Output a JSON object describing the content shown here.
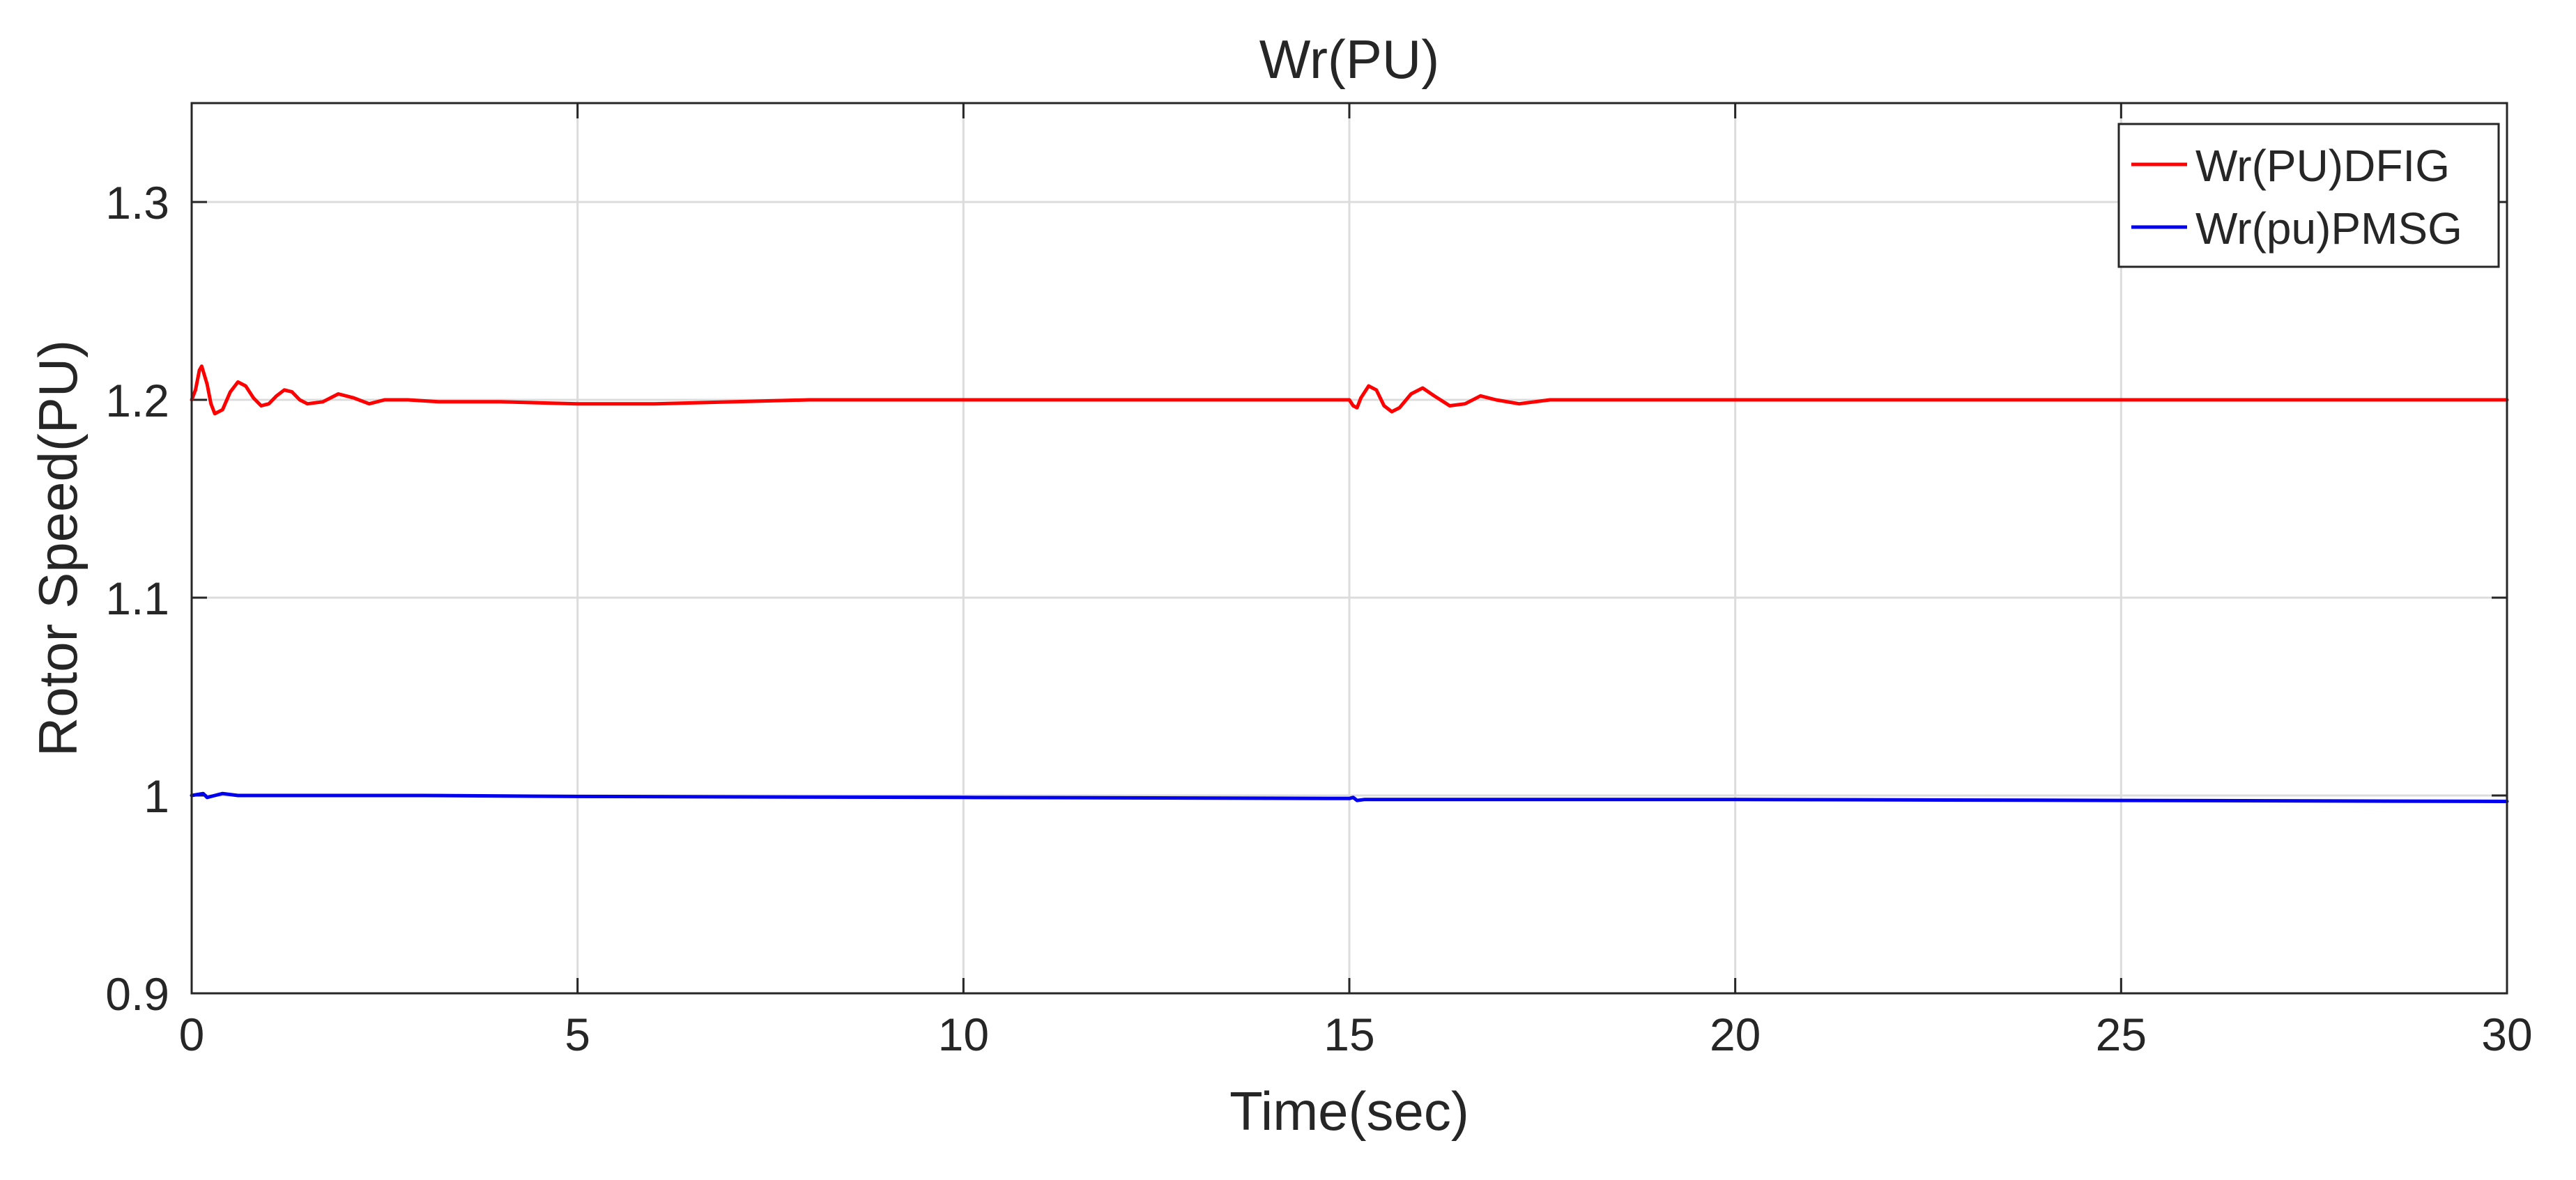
{
  "chart_data": {
    "type": "line",
    "title": "Wr(PU)",
    "xlabel": "Time(sec)",
    "ylabel": "Rotor Speed(PU)",
    "xlim": [
      0,
      30
    ],
    "ylim": [
      0.9,
      1.35
    ],
    "xticks": [
      0,
      5,
      10,
      15,
      20,
      25,
      30
    ],
    "xtick_labels": [
      "0",
      "5",
      "10",
      "15",
      "20",
      "25",
      "30"
    ],
    "yticks": [
      0.9,
      1.0,
      1.1,
      1.2,
      1.3
    ],
    "ytick_labels": [
      "0.9",
      "1",
      "1.1",
      "1.2",
      "1.3"
    ],
    "grid": true,
    "legend_position": "top-right",
    "series": [
      {
        "name": "Wr(PU)DFIG",
        "color": "#ff0000",
        "x": [
          0,
          0.05,
          0.1,
          0.13,
          0.2,
          0.25,
          0.3,
          0.4,
          0.5,
          0.6,
          0.7,
          0.8,
          0.9,
          1.0,
          1.1,
          1.2,
          1.3,
          1.4,
          1.5,
          1.7,
          1.9,
          2.1,
          2.3,
          2.5,
          2.8,
          3.2,
          4,
          5,
          6,
          8,
          10,
          12,
          14,
          15,
          15.05,
          15.1,
          15.15,
          15.25,
          15.35,
          15.45,
          15.55,
          15.65,
          15.8,
          15.95,
          16.1,
          16.3,
          16.5,
          16.7,
          16.9,
          17.2,
          17.6,
          18,
          20,
          25,
          30
        ],
        "y": [
          1.2,
          1.205,
          1.215,
          1.217,
          1.208,
          1.198,
          1.193,
          1.195,
          1.204,
          1.209,
          1.207,
          1.201,
          1.197,
          1.198,
          1.202,
          1.205,
          1.204,
          1.2,
          1.198,
          1.199,
          1.203,
          1.201,
          1.198,
          1.2,
          1.2,
          1.199,
          1.199,
          1.198,
          1.198,
          1.2,
          1.2,
          1.2,
          1.2,
          1.2,
          1.197,
          1.196,
          1.201,
          1.207,
          1.205,
          1.197,
          1.194,
          1.196,
          1.203,
          1.206,
          1.202,
          1.197,
          1.198,
          1.202,
          1.2,
          1.198,
          1.2,
          1.2,
          1.2,
          1.2,
          1.2
        ]
      },
      {
        "name": "Wr(pu)PMSG",
        "color": "#0000ee",
        "x": [
          0,
          0.15,
          0.2,
          0.3,
          0.4,
          0.6,
          1,
          3,
          5,
          10,
          15,
          15.05,
          15.1,
          15.2,
          20,
          25,
          30
        ],
        "y": [
          1.0,
          1.001,
          0.999,
          1.0,
          1.001,
          1.0,
          1.0,
          1.0,
          0.9995,
          0.999,
          0.9985,
          0.999,
          0.9975,
          0.998,
          0.998,
          0.9975,
          0.997
        ]
      }
    ]
  }
}
